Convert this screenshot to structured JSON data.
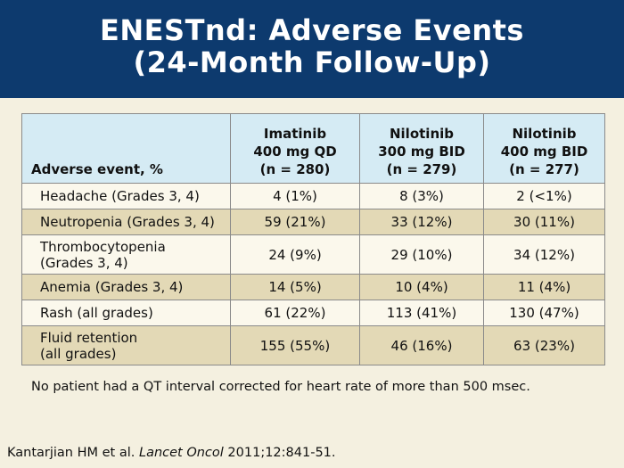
{
  "slide": {
    "title_line1": "ENESTnd: Adverse Events",
    "title_line2": "(24-Month Follow-Up)"
  },
  "table": {
    "header": {
      "event_col": "Adverse event, %",
      "arms": [
        {
          "line1": "Imatinib",
          "line2": "400 mg QD",
          "line3": "(n = 280)"
        },
        {
          "line1": "Nilotinib",
          "line2": "300 mg BID",
          "line3": "(n = 279)"
        },
        {
          "line1": "Nilotinib",
          "line2": "400 mg BID",
          "line3": "(n = 277)"
        }
      ]
    },
    "rows": [
      {
        "event_line1": "Headache (Grades 3, 4)",
        "event_line2": "",
        "values": [
          "4 (1%)",
          "8 (3%)",
          "2 (<1%)"
        ]
      },
      {
        "event_line1": "Neutropenia (Grades 3, 4)",
        "event_line2": "",
        "values": [
          "59 (21%)",
          "33 (12%)",
          "30 (11%)"
        ]
      },
      {
        "event_line1": "Thrombocytopenia",
        "event_line2": "(Grades 3, 4)",
        "values": [
          "24 (9%)",
          "29 (10%)",
          "34 (12%)"
        ]
      },
      {
        "event_line1": "Anemia (Grades 3, 4)",
        "event_line2": "",
        "values": [
          "14 (5%)",
          "10 (4%)",
          "11 (4%)"
        ]
      },
      {
        "event_line1": "Rash (all grades)",
        "event_line2": "",
        "values": [
          "61 (22%)",
          "113 (41%)",
          "130 (47%)"
        ]
      },
      {
        "event_line1": "Fluid retention",
        "event_line2": "(all grades)",
        "values": [
          "155 (55%)",
          "46 (16%)",
          "63 (23%)"
        ]
      }
    ]
  },
  "footnote": "No patient had a QT interval corrected for heart rate of more than 500 msec.",
  "citation": {
    "authors": "Kantarjian HM et al.",
    "journal": "Lancet Oncol",
    "details": "2011;12:841-51."
  },
  "colors": {
    "header_bg": "#0d3a6e",
    "slide_bg": "#f4f0e0",
    "table_header_bg": "#d5ebf4",
    "row_light": "#fbf8ec",
    "row_dark": "#e3d9b6"
  }
}
